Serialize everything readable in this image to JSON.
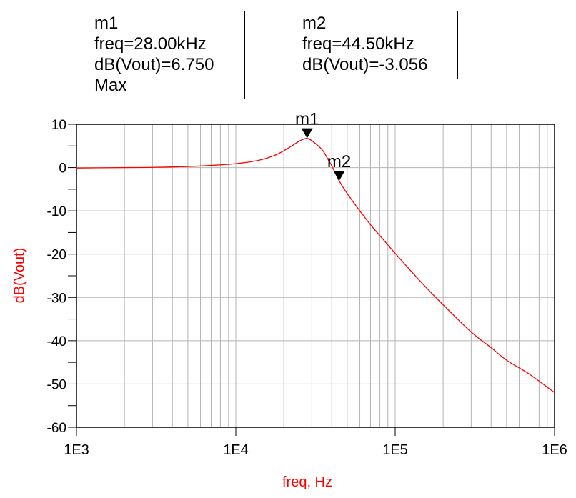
{
  "markers": [
    {
      "name": "m1",
      "lines": [
        "m1",
        "freq=28.00kHz",
        "dB(Vout)=6.750",
        "Max"
      ],
      "freq": 28000,
      "value": 6.75
    },
    {
      "name": "m2",
      "lines": [
        "m2",
        "freq=44.50kHz",
        "dB(Vout)=-3.056"
      ],
      "freq": 44500,
      "value": -3.056
    }
  ],
  "chart_data": {
    "type": "line",
    "xlabel": "freq, Hz",
    "ylabel": "dB(Vout)",
    "xscale": "log",
    "xlim": [
      1000,
      1000000
    ],
    "ylim": [
      -60,
      10
    ],
    "xticks": [
      {
        "v": 1000,
        "label": "1E3"
      },
      {
        "v": 10000,
        "label": "1E4"
      },
      {
        "v": 100000,
        "label": "1E5"
      },
      {
        "v": 1000000,
        "label": "1E6"
      }
    ],
    "yticks": [
      {
        "v": 10,
        "label": "10"
      },
      {
        "v": 0,
        "label": "0"
      },
      {
        "v": -10,
        "label": "-10"
      },
      {
        "v": -20,
        "label": "-20"
      },
      {
        "v": -30,
        "label": "-30"
      },
      {
        "v": -40,
        "label": "-40"
      },
      {
        "v": -50,
        "label": "-50"
      },
      {
        "v": -60,
        "label": "-60"
      }
    ],
    "grid": true,
    "line_color": "#ff0000",
    "series": [
      {
        "x": [
          1000,
          2000,
          3000,
          5000,
          7000,
          10000,
          14000,
          18000,
          22000,
          25000,
          28000,
          31000,
          35000,
          38000,
          40000,
          44500,
          50000,
          60000,
          70000,
          85000,
          100000,
          150000,
          200000,
          300000,
          400000,
          500000,
          700000,
          1000000
        ],
        "y": [
          -0.1,
          0,
          0.05,
          0.25,
          0.5,
          0.9,
          1.7,
          3.0,
          4.8,
          6.1,
          6.75,
          5.8,
          4.0,
          1.8,
          0.4,
          -3.056,
          -6.0,
          -10.0,
          -13.2,
          -16.8,
          -19.8,
          -27.0,
          -31.7,
          -38.0,
          -41.6,
          -44.5,
          -47.8,
          -52.0
        ]
      }
    ]
  }
}
